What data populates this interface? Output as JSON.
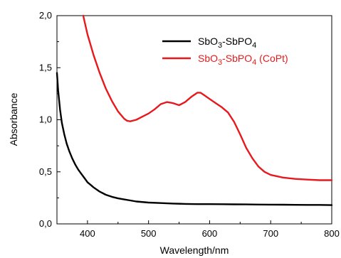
{
  "chart_data": {
    "type": "line",
    "title": "",
    "xlabel": "Wavelength/nm",
    "ylabel": "Absorbance",
    "xlim": [
      350,
      800
    ],
    "ylim": [
      0,
      2
    ],
    "xticks": [
      400,
      500,
      600,
      700,
      800
    ],
    "yticks": [
      0,
      0.5,
      1,
      1.5,
      2
    ],
    "xtick_labels": [
      "400",
      "500",
      "600",
      "700",
      "800"
    ],
    "ytick_labels": [
      "0,0",
      "0,5",
      "1,0",
      "1,5",
      "2,0"
    ],
    "grid": false,
    "legend_position": "top-right",
    "series": [
      {
        "name": "SbO3-SbPO4",
        "legend_main": "SbO",
        "legend_sub1": "3",
        "legend_mid": "-SbPO",
        "legend_sub2": "4",
        "legend_suffix": "",
        "color": "#000000",
        "x": [
          350,
          352,
          355,
          358,
          362,
          366,
          370,
          375,
          380,
          385,
          390,
          395,
          400,
          410,
          420,
          430,
          440,
          450,
          460,
          470,
          480,
          500,
          520,
          540,
          560,
          580,
          600,
          620,
          640,
          660,
          680,
          700,
          720,
          740,
          760,
          780,
          800
        ],
        "y": [
          1.45,
          1.28,
          1.1,
          0.97,
          0.86,
          0.77,
          0.7,
          0.63,
          0.57,
          0.52,
          0.48,
          0.44,
          0.4,
          0.35,
          0.31,
          0.28,
          0.26,
          0.245,
          0.235,
          0.225,
          0.215,
          0.205,
          0.2,
          0.195,
          0.192,
          0.19,
          0.19,
          0.189,
          0.188,
          0.187,
          0.186,
          0.185,
          0.184,
          0.183,
          0.182,
          0.182,
          0.18
        ]
      },
      {
        "name": "SbO3-SbPO4 (CoPt)",
        "legend_main": "SbO",
        "legend_sub1": "3",
        "legend_mid": "-SbPO",
        "legend_sub2": "4",
        "legend_suffix": " (CoPt)",
        "color": "#e8191c",
        "x": [
          393,
          400,
          410,
          420,
          430,
          440,
          450,
          460,
          465,
          470,
          480,
          490,
          500,
          510,
          520,
          530,
          540,
          550,
          560,
          570,
          580,
          585,
          590,
          600,
          610,
          620,
          630,
          640,
          650,
          660,
          670,
          680,
          690,
          700,
          720,
          740,
          760,
          780,
          800
        ],
        "y": [
          2.0,
          1.82,
          1.62,
          1.45,
          1.3,
          1.18,
          1.08,
          1.01,
          0.99,
          0.985,
          1.0,
          1.03,
          1.06,
          1.1,
          1.15,
          1.17,
          1.16,
          1.14,
          1.17,
          1.22,
          1.26,
          1.26,
          1.24,
          1.2,
          1.16,
          1.12,
          1.07,
          0.98,
          0.86,
          0.73,
          0.63,
          0.55,
          0.5,
          0.47,
          0.445,
          0.432,
          0.425,
          0.42,
          0.42
        ]
      }
    ]
  }
}
